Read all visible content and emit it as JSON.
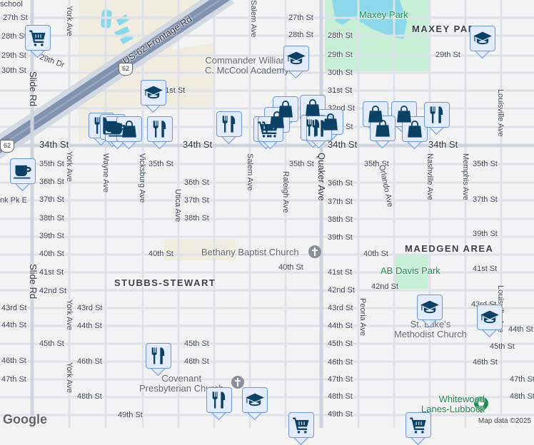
{
  "map": {
    "colors": {
      "background": "#f4f3f4",
      "road": "#dde1e8",
      "major_road": "#cfd5de",
      "highway": "#8193b0",
      "park": "#c6efd6",
      "water": "#8ad8ea",
      "industrial": "#f1ece0",
      "marker_fill": "#e3ecfc",
      "marker_border": "#6f96d8",
      "icon": "#0c4166",
      "park_text": "#1e8a4e"
    },
    "streets": [
      "school",
      "27th St",
      "28th St",
      "29th St",
      "29th Dr",
      "30th St",
      "34th St",
      "35th St",
      "36th St",
      "nk Pk E",
      "37th St",
      "38th St",
      "39th St",
      "40th St",
      "41st St",
      "42nd St",
      "43rd St",
      "43rd St",
      "44th St",
      "44th St",
      "45th St",
      "45th St",
      "46th St",
      "46th St",
      "46th St",
      "47th St",
      "48th St",
      "49th St",
      "35th St",
      "36th St",
      "37th St",
      "38th St",
      "40th St",
      "34th St",
      "31st St",
      "40th St",
      "27th St",
      "28th St",
      "28th St",
      "29th St",
      "30th St",
      "31st St",
      "32nd St",
      "33rd St",
      "34th St",
      "35th St",
      "35th St",
      "36th St",
      "37th St",
      "38th St",
      "39th St",
      "40th St",
      "41st St",
      "42nd St",
      "42nd St",
      "43rd St",
      "44th St",
      "45th St",
      "46th St",
      "47th St",
      "48th St",
      "49th St",
      "29th St",
      "34th St",
      "35th St",
      "37th St",
      "39th St",
      "41st St",
      "43rd St",
      "44th St",
      "45th St",
      "46th St",
      "47th St",
      "48th St",
      "US-62 Frontage Rd"
    ],
    "avenues": [
      "York Ave",
      "Salem Ave",
      "Slide Rd",
      "York Ave",
      "Wayne Ave",
      "Vicksburg Ave",
      "Utica Ave",
      "Salem Ave",
      "Raleigh Ave",
      "Quaker Ave",
      "Orlando Ave",
      "Nashville Ave",
      "Memphis Ave",
      "Louisville Ave",
      "Slide Rd",
      "York Ave",
      "York Ave",
      "Peoria Ave",
      "Louisville Ave"
    ],
    "highway_shields": [
      "62",
      "62"
    ],
    "places": {
      "academy": "Commander William\nC. McCool Academy",
      "bethany": "Bethany Baptist Church",
      "covenant": "Covenant\nPresbyterian Church",
      "st_lukes": "St. Luke's\nMethodist Church",
      "whitewood": "Whitewood\nLanes-Lubbock",
      "maxey_park": "Maxey Park",
      "ab_davis_park": "AB Davis Park"
    },
    "neighborhoods": [
      "MAXEY PARK",
      "MAEDGEN AREA",
      "STUBBS-STEWART"
    ],
    "markers": [
      "cart-icon",
      "school-icon",
      "restaurant-icon",
      "coffee-icon",
      "coffee-icon",
      "shop-icon",
      "restaurant-icon",
      "coffee-icon",
      "restaurant-icon",
      "cart-icon",
      "school-icon",
      "shop-icon",
      "shop-icon",
      "shop-icon",
      "cart-icon",
      "shop-icon",
      "restaurant-icon",
      "restaurant-icon",
      "shop-icon",
      "shop-icon",
      "shop-icon",
      "shop-icon",
      "restaurant-icon",
      "school-icon",
      "school-icon",
      "school-icon",
      "restaurant-icon",
      "restaurant-icon",
      "school-icon",
      "cart-icon",
      "cart-icon"
    ],
    "logo": "Google",
    "attribution": "Map data ©2025"
  }
}
